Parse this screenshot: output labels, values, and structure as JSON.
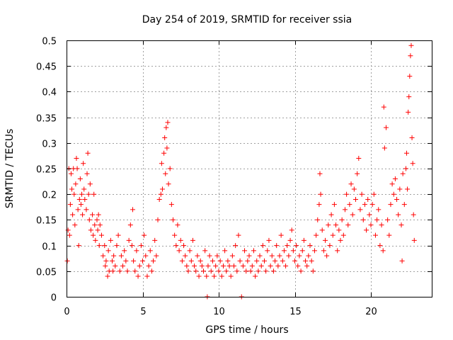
{
  "chart_data": {
    "type": "scatter",
    "title": "Day 254 of 2019, SRMTID for receiver ssia",
    "xlabel": "GPS time / hours",
    "ylabel": "SRMTID / TECUs",
    "xlim": [
      0,
      24
    ],
    "ylim": [
      0,
      0.5
    ],
    "xticks": [
      0,
      5,
      10,
      15,
      20
    ],
    "xtick_labels": [
      "0",
      "5",
      "10",
      "15",
      "20"
    ],
    "yticks": [
      0,
      0.05,
      0.1,
      0.15,
      0.2,
      0.25,
      0.3,
      0.35,
      0.4,
      0.45,
      0.5
    ],
    "ytick_labels": [
      "0",
      "0.05",
      "0.1",
      "0.15",
      "0.2",
      "0.25",
      "0.3",
      "0.35",
      "0.4",
      "0.45",
      "0.5"
    ],
    "grid": true,
    "marker": "+",
    "color": "#ff0000",
    "series": [
      {
        "name": "SRMTID",
        "points": [
          [
            0.05,
            0.07
          ],
          [
            0.1,
            0.13
          ],
          [
            0.15,
            0.25
          ],
          [
            0.2,
            0.12
          ],
          [
            0.25,
            0.18
          ],
          [
            0.3,
            0.24
          ],
          [
            0.35,
            0.21
          ],
          [
            0.4,
            0.16
          ],
          [
            0.45,
            0.25
          ],
          [
            0.5,
            0.2
          ],
          [
            0.55,
            0.14
          ],
          [
            0.6,
            0.22
          ],
          [
            0.65,
            0.27
          ],
          [
            0.7,
            0.25
          ],
          [
            0.75,
            0.17
          ],
          [
            0.8,
            0.1
          ],
          [
            0.85,
            0.19
          ],
          [
            0.9,
            0.23
          ],
          [
            0.95,
            0.18
          ],
          [
            1.0,
            0.2
          ],
          [
            1.05,
            0.16
          ],
          [
            1.1,
            0.26
          ],
          [
            1.15,
            0.21
          ],
          [
            1.2,
            0.19
          ],
          [
            1.3,
            0.17
          ],
          [
            1.35,
            0.24
          ],
          [
            1.4,
            0.28
          ],
          [
            1.45,
            0.2
          ],
          [
            1.5,
            0.15
          ],
          [
            1.55,
            0.22
          ],
          [
            1.6,
            0.13
          ],
          [
            1.7,
            0.16
          ],
          [
            1.75,
            0.12
          ],
          [
            1.8,
            0.2
          ],
          [
            1.85,
            0.14
          ],
          [
            1.9,
            0.11
          ],
          [
            2.0,
            0.15
          ],
          [
            2.05,
            0.13
          ],
          [
            2.1,
            0.16
          ],
          [
            2.15,
            0.1
          ],
          [
            2.2,
            0.14
          ],
          [
            2.3,
            0.12
          ],
          [
            2.4,
            0.08
          ],
          [
            2.5,
            0.1
          ],
          [
            2.55,
            0.06
          ],
          [
            2.6,
            0.07
          ],
          [
            2.7,
            0.04
          ],
          [
            2.75,
            0.09
          ],
          [
            2.8,
            0.05
          ],
          [
            2.9,
            0.11
          ],
          [
            3.0,
            0.07
          ],
          [
            3.05,
            0.05
          ],
          [
            3.1,
            0.08
          ],
          [
            3.2,
            0.06
          ],
          [
            3.3,
            0.1
          ],
          [
            3.4,
            0.12
          ],
          [
            3.5,
            0.05
          ],
          [
            3.6,
            0.08
          ],
          [
            3.7,
            0.06
          ],
          [
            3.8,
            0.09
          ],
          [
            3.9,
            0.07
          ],
          [
            4.0,
            0.05
          ],
          [
            4.1,
            0.11
          ],
          [
            4.2,
            0.14
          ],
          [
            4.3,
            0.1
          ],
          [
            4.35,
            0.17
          ],
          [
            4.4,
            0.07
          ],
          [
            4.5,
            0.05
          ],
          [
            4.6,
            0.09
          ],
          [
            4.7,
            0.04
          ],
          [
            4.8,
            0.06
          ],
          [
            4.9,
            0.1
          ],
          [
            5.0,
            0.07
          ],
          [
            5.1,
            0.12
          ],
          [
            5.2,
            0.08
          ],
          [
            5.3,
            0.04
          ],
          [
            5.4,
            0.06
          ],
          [
            5.5,
            0.09
          ],
          [
            5.6,
            0.05
          ],
          [
            5.7,
            0.07
          ],
          [
            5.8,
            0.11
          ],
          [
            5.9,
            0.08
          ],
          [
            6.0,
            0.15
          ],
          [
            6.1,
            0.19
          ],
          [
            6.2,
            0.2
          ],
          [
            6.25,
            0.26
          ],
          [
            6.3,
            0.21
          ],
          [
            6.4,
            0.28
          ],
          [
            6.45,
            0.31
          ],
          [
            6.5,
            0.24
          ],
          [
            6.55,
            0.33
          ],
          [
            6.6,
            0.29
          ],
          [
            6.65,
            0.34
          ],
          [
            6.7,
            0.22
          ],
          [
            6.8,
            0.25
          ],
          [
            6.9,
            0.18
          ],
          [
            7.0,
            0.15
          ],
          [
            7.1,
            0.12
          ],
          [
            7.2,
            0.1
          ],
          [
            7.3,
            0.14
          ],
          [
            7.4,
            0.09
          ],
          [
            7.5,
            0.11
          ],
          [
            7.6,
            0.07
          ],
          [
            7.7,
            0.1
          ],
          [
            7.8,
            0.08
          ],
          [
            7.9,
            0.06
          ],
          [
            8.0,
            0.05
          ],
          [
            8.1,
            0.09
          ],
          [
            8.2,
            0.07
          ],
          [
            8.3,
            0.11
          ],
          [
            8.4,
            0.06
          ],
          [
            8.5,
            0.05
          ],
          [
            8.6,
            0.08
          ],
          [
            8.7,
            0.04
          ],
          [
            8.8,
            0.07
          ],
          [
            8.9,
            0.06
          ],
          [
            9.0,
            0.05
          ],
          [
            9.1,
            0.09
          ],
          [
            9.2,
            0.04
          ],
          [
            9.25,
            0.0
          ],
          [
            9.3,
            0.06
          ],
          [
            9.4,
            0.08
          ],
          [
            9.5,
            0.05
          ],
          [
            9.6,
            0.07
          ],
          [
            9.7,
            0.04
          ],
          [
            9.8,
            0.06
          ],
          [
            9.9,
            0.08
          ],
          [
            10.0,
            0.05
          ],
          [
            10.1,
            0.07
          ],
          [
            10.2,
            0.04
          ],
          [
            10.3,
            0.06
          ],
          [
            10.4,
            0.09
          ],
          [
            10.5,
            0.05
          ],
          [
            10.6,
            0.07
          ],
          [
            10.7,
            0.06
          ],
          [
            10.8,
            0.04
          ],
          [
            10.9,
            0.08
          ],
          [
            11.0,
            0.06
          ],
          [
            11.1,
            0.1
          ],
          [
            11.2,
            0.05
          ],
          [
            11.3,
            0.12
          ],
          [
            11.4,
            0.07
          ],
          [
            11.5,
            0.0
          ],
          [
            11.6,
            0.06
          ],
          [
            11.7,
            0.09
          ],
          [
            11.8,
            0.05
          ],
          [
            11.9,
            0.07
          ],
          [
            12.0,
            0.08
          ],
          [
            12.1,
            0.05
          ],
          [
            12.2,
            0.06
          ],
          [
            12.3,
            0.09
          ],
          [
            12.4,
            0.04
          ],
          [
            12.5,
            0.07
          ],
          [
            12.6,
            0.05
          ],
          [
            12.7,
            0.08
          ],
          [
            12.8,
            0.06
          ],
          [
            12.9,
            0.1
          ],
          [
            13.0,
            0.07
          ],
          [
            13.1,
            0.05
          ],
          [
            13.2,
            0.09
          ],
          [
            13.3,
            0.11
          ],
          [
            13.4,
            0.06
          ],
          [
            13.5,
            0.08
          ],
          [
            13.6,
            0.05
          ],
          [
            13.7,
            0.07
          ],
          [
            13.8,
            0.1
          ],
          [
            13.9,
            0.06
          ],
          [
            14.0,
            0.08
          ],
          [
            14.1,
            0.12
          ],
          [
            14.2,
            0.07
          ],
          [
            14.3,
            0.09
          ],
          [
            14.4,
            0.06
          ],
          [
            14.5,
            0.1
          ],
          [
            14.6,
            0.08
          ],
          [
            14.7,
            0.11
          ],
          [
            14.8,
            0.13
          ],
          [
            14.9,
            0.09
          ],
          [
            15.0,
            0.07
          ],
          [
            15.1,
            0.1
          ],
          [
            15.2,
            0.06
          ],
          [
            15.3,
            0.08
          ],
          [
            15.4,
            0.05
          ],
          [
            15.5,
            0.09
          ],
          [
            15.6,
            0.11
          ],
          [
            15.7,
            0.07
          ],
          [
            15.8,
            0.06
          ],
          [
            15.9,
            0.08
          ],
          [
            16.0,
            0.1
          ],
          [
            16.1,
            0.07
          ],
          [
            16.2,
            0.05
          ],
          [
            16.3,
            0.09
          ],
          [
            16.4,
            0.12
          ],
          [
            16.5,
            0.15
          ],
          [
            16.6,
            0.18
          ],
          [
            16.65,
            0.24
          ],
          [
            16.7,
            0.2
          ],
          [
            16.8,
            0.13
          ],
          [
            16.9,
            0.09
          ],
          [
            17.0,
            0.11
          ],
          [
            17.1,
            0.08
          ],
          [
            17.2,
            0.14
          ],
          [
            17.3,
            0.1
          ],
          [
            17.4,
            0.16
          ],
          [
            17.5,
            0.12
          ],
          [
            17.6,
            0.18
          ],
          [
            17.7,
            0.14
          ],
          [
            17.8,
            0.09
          ],
          [
            17.9,
            0.13
          ],
          [
            18.0,
            0.11
          ],
          [
            18.1,
            0.15
          ],
          [
            18.2,
            0.12
          ],
          [
            18.3,
            0.17
          ],
          [
            18.4,
            0.2
          ],
          [
            18.5,
            0.14
          ],
          [
            18.6,
            0.18
          ],
          [
            18.7,
            0.22
          ],
          [
            18.8,
            0.16
          ],
          [
            18.9,
            0.21
          ],
          [
            19.0,
            0.19
          ],
          [
            19.1,
            0.24
          ],
          [
            19.2,
            0.27
          ],
          [
            19.3,
            0.17
          ],
          [
            19.4,
            0.2
          ],
          [
            19.5,
            0.15
          ],
          [
            19.6,
            0.18
          ],
          [
            19.7,
            0.13
          ],
          [
            19.8,
            0.19
          ],
          [
            19.9,
            0.16
          ],
          [
            20.0,
            0.14
          ],
          [
            20.1,
            0.18
          ],
          [
            20.2,
            0.2
          ],
          [
            20.3,
            0.12
          ],
          [
            20.4,
            0.15
          ],
          [
            20.5,
            0.17
          ],
          [
            20.6,
            0.1
          ],
          [
            20.7,
            0.14
          ],
          [
            20.8,
            0.09
          ],
          [
            20.85,
            0.37
          ],
          [
            20.9,
            0.29
          ],
          [
            21.0,
            0.33
          ],
          [
            21.1,
            0.15
          ],
          [
            21.2,
            0.12
          ],
          [
            21.3,
            0.18
          ],
          [
            21.4,
            0.22
          ],
          [
            21.5,
            0.2
          ],
          [
            21.6,
            0.23
          ],
          [
            21.7,
            0.19
          ],
          [
            21.8,
            0.16
          ],
          [
            21.9,
            0.21
          ],
          [
            22.0,
            0.14
          ],
          [
            22.05,
            0.07
          ],
          [
            22.1,
            0.24
          ],
          [
            22.2,
            0.18
          ],
          [
            22.3,
            0.25
          ],
          [
            22.35,
            0.28
          ],
          [
            22.4,
            0.21
          ],
          [
            22.45,
            0.36
          ],
          [
            22.5,
            0.39
          ],
          [
            22.55,
            0.43
          ],
          [
            22.6,
            0.47
          ],
          [
            22.65,
            0.49
          ],
          [
            22.7,
            0.31
          ],
          [
            22.75,
            0.26
          ],
          [
            22.8,
            0.16
          ],
          [
            22.85,
            0.11
          ]
        ]
      }
    ]
  }
}
